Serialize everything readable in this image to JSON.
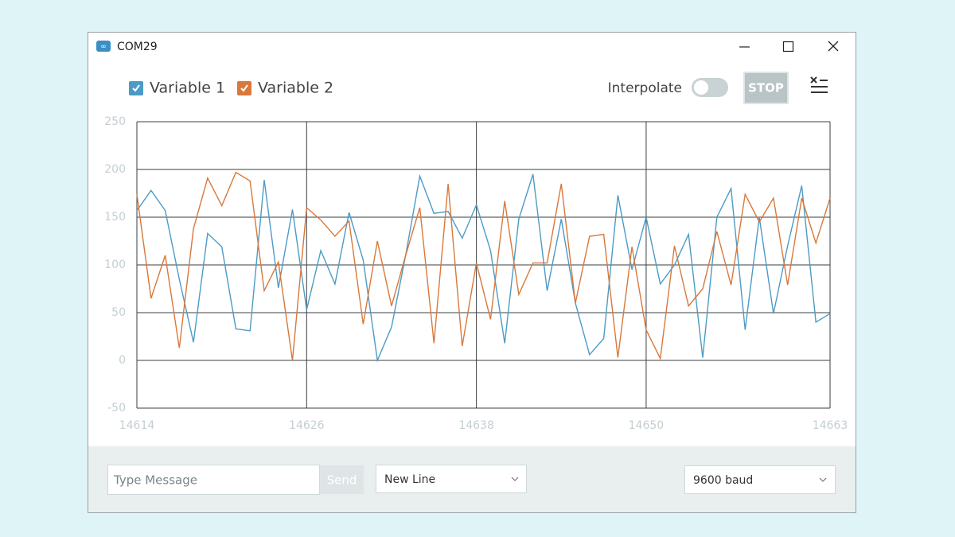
{
  "window": {
    "title": "COM29"
  },
  "controls": {
    "interpolate": "Interpolate",
    "stop": "STOP",
    "message_placeholder": "Type Message",
    "send": "Send",
    "line_ending": "New Line",
    "baud": "9600 baud"
  },
  "chart_data": {
    "type": "line",
    "x": [
      14614,
      14615,
      14616,
      14617,
      14618,
      14619,
      14620,
      14621,
      14622,
      14623,
      14624,
      14625,
      14626,
      14627,
      14628,
      14629,
      14630,
      14631,
      14632,
      14633,
      14634,
      14635,
      14636,
      14637,
      14638,
      14639,
      14640,
      14641,
      14642,
      14643,
      14644,
      14645,
      14646,
      14647,
      14648,
      14649,
      14650,
      14651,
      14652,
      14653,
      14654,
      14655,
      14656,
      14657,
      14658,
      14659,
      14660,
      14661,
      14662,
      14663
    ],
    "series": [
      {
        "name": "Variable 1",
        "color": "#4b9bc6",
        "values": [
          157,
          178,
          157,
          85,
          19,
          133,
          119,
          33,
          31,
          189,
          76,
          158,
          53,
          115,
          80,
          155,
          105,
          0,
          35,
          110,
          193,
          154,
          156,
          128,
          163,
          115,
          18,
          148,
          195,
          73,
          148,
          60,
          6,
          23,
          173,
          95,
          150,
          80,
          100,
          132,
          3,
          150,
          180,
          32,
          150,
          49,
          120,
          183,
          40,
          49
        ]
      },
      {
        "name": "Variable 2",
        "color": "#d9783a",
        "values": [
          174,
          65,
          110,
          13,
          138,
          191,
          162,
          197,
          188,
          73,
          103,
          0,
          160,
          147,
          130,
          146,
          38,
          125,
          57,
          110,
          160,
          18,
          185,
          15,
          102,
          43,
          167,
          69,
          102,
          102,
          185,
          60,
          130,
          132,
          3,
          119,
          32,
          2,
          120,
          57,
          75,
          135,
          79,
          174,
          145,
          170,
          79,
          170,
          123,
          170
        ]
      }
    ],
    "xlim": [
      14614,
      14663
    ],
    "xticks": [
      14614,
      14626,
      14638,
      14650,
      14663
    ],
    "ylim": [
      -50,
      250
    ],
    "yticks": [
      -50,
      0,
      50,
      100,
      150,
      200,
      250
    ],
    "grid": true
  }
}
